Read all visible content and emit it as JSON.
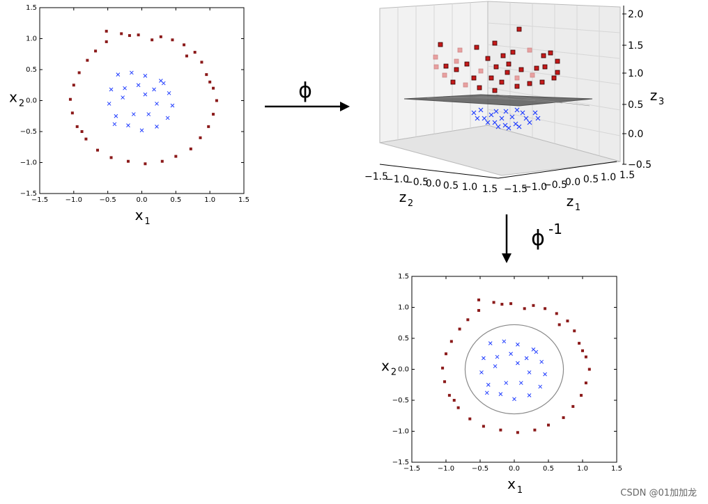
{
  "colors": {
    "outer": "#8b1a1a",
    "inner": "#1f3cff",
    "plane": "#555555",
    "axis": "#000000",
    "circle": "#888888"
  },
  "arrows": {
    "phi_label": "ϕ",
    "phi_inv_label": "ϕ",
    "phi_inv_sup": "-1"
  },
  "chart_data": [
    {
      "type": "scatter",
      "id": "left",
      "xlim": [
        -1.5,
        1.5
      ],
      "ylim": [
        -1.5,
        1.5
      ],
      "xticks": [
        "−1.5",
        "−1.0",
        "−0.5",
        "0.0",
        "0.5",
        "1.0",
        "1.5"
      ],
      "yticks": [
        "−1.5",
        "−1.0",
        "−0.5",
        "0.0",
        "0.5",
        "1.0",
        "1.5"
      ],
      "xlabel": "x",
      "xlabel_sub": "1",
      "ylabel": "x",
      "ylabel_sub": "2",
      "series": [
        {
          "marker": "square",
          "color": "#8b1a1a",
          "points": [
            [
              -0.52,
              1.12
            ],
            [
              -0.3,
              1.08
            ],
            [
              -0.05,
              1.06
            ],
            [
              0.28,
              1.03
            ],
            [
              0.45,
              0.98
            ],
            [
              0.62,
              0.9
            ],
            [
              0.78,
              0.78
            ],
            [
              0.88,
              0.62
            ],
            [
              0.95,
              0.42
            ],
            [
              1.05,
              0.2
            ],
            [
              1.1,
              0.0
            ],
            [
              1.05,
              -0.22
            ],
            [
              0.98,
              -0.42
            ],
            [
              0.86,
              -0.6
            ],
            [
              0.72,
              -0.78
            ],
            [
              0.5,
              -0.9
            ],
            [
              0.3,
              -0.98
            ],
            [
              0.05,
              -1.02
            ],
            [
              -0.2,
              -0.98
            ],
            [
              -0.45,
              -0.92
            ],
            [
              -0.65,
              -0.8
            ],
            [
              -0.82,
              -0.62
            ],
            [
              -0.95,
              -0.42
            ],
            [
              -1.02,
              -0.2
            ],
            [
              -1.05,
              0.02
            ],
            [
              -1.0,
              0.25
            ],
            [
              -0.92,
              0.45
            ],
            [
              -0.8,
              0.65
            ],
            [
              -0.68,
              0.8
            ],
            [
              -0.52,
              0.95
            ],
            [
              -0.18,
              1.05
            ],
            [
              0.15,
              0.98
            ],
            [
              0.66,
              0.72
            ],
            [
              1.0,
              0.3
            ],
            [
              -0.88,
              -0.5
            ]
          ]
        },
        {
          "marker": "x",
          "color": "#1f3cff",
          "points": [
            [
              -0.35,
              0.42
            ],
            [
              -0.15,
              0.45
            ],
            [
              0.05,
              0.4
            ],
            [
              0.28,
              0.32
            ],
            [
              0.4,
              0.12
            ],
            [
              0.45,
              -0.08
            ],
            [
              0.38,
              -0.28
            ],
            [
              0.22,
              -0.42
            ],
            [
              0.0,
              -0.48
            ],
            [
              -0.2,
              -0.4
            ],
            [
              -0.38,
              -0.25
            ],
            [
              -0.48,
              -0.05
            ],
            [
              -0.45,
              0.18
            ],
            [
              -0.25,
              0.2
            ],
            [
              -0.05,
              0.25
            ],
            [
              0.18,
              0.18
            ],
            [
              0.22,
              -0.05
            ],
            [
              0.1,
              -0.22
            ],
            [
              -0.12,
              -0.22
            ],
            [
              -0.28,
              0.05
            ],
            [
              0.32,
              0.28
            ],
            [
              -0.4,
              -0.38
            ],
            [
              0.05,
              0.1
            ]
          ]
        }
      ]
    },
    {
      "type": "scatter3d",
      "id": "middle",
      "z3ticks": [
        "2.0",
        "1.5",
        "1.0",
        "0.5",
        "0.0",
        "−0.5"
      ],
      "z2ticks": [
        "−1.5",
        "−1.0",
        "−0.5",
        "0.0",
        "0.5",
        "1.0",
        "1.5"
      ],
      "z1ticks": [
        "−1.5",
        "−1.0",
        "−0.5",
        "0.0",
        "0.5",
        "1.0",
        "1.5"
      ],
      "z3label": "z",
      "z3label_sub": "3",
      "z2label": "z",
      "z2label_sub": "2",
      "z1label": "z",
      "z1label_sub": "1"
    },
    {
      "type": "scatter",
      "id": "bottom",
      "xlim": [
        -1.5,
        1.5
      ],
      "ylim": [
        -1.5,
        1.5
      ],
      "xticks": [
        "−1.5",
        "−1.0",
        "−0.5",
        "0.0",
        "0.5",
        "1.0",
        "1.5"
      ],
      "yticks": [
        "−1.5",
        "−1.0",
        "−0.5",
        "0.0",
        "0.5",
        "1.0",
        "1.5"
      ],
      "xlabel": "x",
      "xlabel_sub": "1",
      "ylabel": "x",
      "ylabel_sub": "2",
      "decision_boundary": {
        "shape": "circle",
        "center": [
          0.0,
          0.0
        ],
        "radius": 0.72
      },
      "series": [
        {
          "marker": "square",
          "color": "#8b1a1a",
          "points": [
            [
              -0.52,
              1.12
            ],
            [
              -0.3,
              1.08
            ],
            [
              -0.05,
              1.06
            ],
            [
              0.28,
              1.03
            ],
            [
              0.45,
              0.98
            ],
            [
              0.62,
              0.9
            ],
            [
              0.78,
              0.78
            ],
            [
              0.88,
              0.62
            ],
            [
              0.95,
              0.42
            ],
            [
              1.05,
              0.2
            ],
            [
              1.1,
              0.0
            ],
            [
              1.05,
              -0.22
            ],
            [
              0.98,
              -0.42
            ],
            [
              0.86,
              -0.6
            ],
            [
              0.72,
              -0.78
            ],
            [
              0.5,
              -0.9
            ],
            [
              0.3,
              -0.98
            ],
            [
              0.05,
              -1.02
            ],
            [
              -0.2,
              -0.98
            ],
            [
              -0.45,
              -0.92
            ],
            [
              -0.65,
              -0.8
            ],
            [
              -0.82,
              -0.62
            ],
            [
              -0.95,
              -0.42
            ],
            [
              -1.02,
              -0.2
            ],
            [
              -1.05,
              0.02
            ],
            [
              -1.0,
              0.25
            ],
            [
              -0.92,
              0.45
            ],
            [
              -0.8,
              0.65
            ],
            [
              -0.68,
              0.8
            ],
            [
              -0.52,
              0.95
            ],
            [
              -0.18,
              1.05
            ],
            [
              0.15,
              0.98
            ],
            [
              0.66,
              0.72
            ],
            [
              1.0,
              0.3
            ],
            [
              -0.88,
              -0.5
            ]
          ]
        },
        {
          "marker": "x",
          "color": "#1f3cff",
          "points": [
            [
              -0.35,
              0.42
            ],
            [
              -0.15,
              0.45
            ],
            [
              0.05,
              0.4
            ],
            [
              0.28,
              0.32
            ],
            [
              0.4,
              0.12
            ],
            [
              0.45,
              -0.08
            ],
            [
              0.38,
              -0.28
            ],
            [
              0.22,
              -0.42
            ],
            [
              0.0,
              -0.48
            ],
            [
              -0.2,
              -0.4
            ],
            [
              -0.38,
              -0.25
            ],
            [
              -0.48,
              -0.05
            ],
            [
              -0.45,
              0.18
            ],
            [
              -0.25,
              0.2
            ],
            [
              -0.05,
              0.25
            ],
            [
              0.18,
              0.18
            ],
            [
              0.22,
              -0.05
            ],
            [
              0.1,
              -0.22
            ],
            [
              -0.12,
              -0.22
            ],
            [
              -0.28,
              0.05
            ],
            [
              0.32,
              0.28
            ],
            [
              -0.4,
              -0.38
            ],
            [
              0.05,
              0.1
            ]
          ]
        }
      ]
    }
  ],
  "watermark": "CSDN @01加加龙"
}
